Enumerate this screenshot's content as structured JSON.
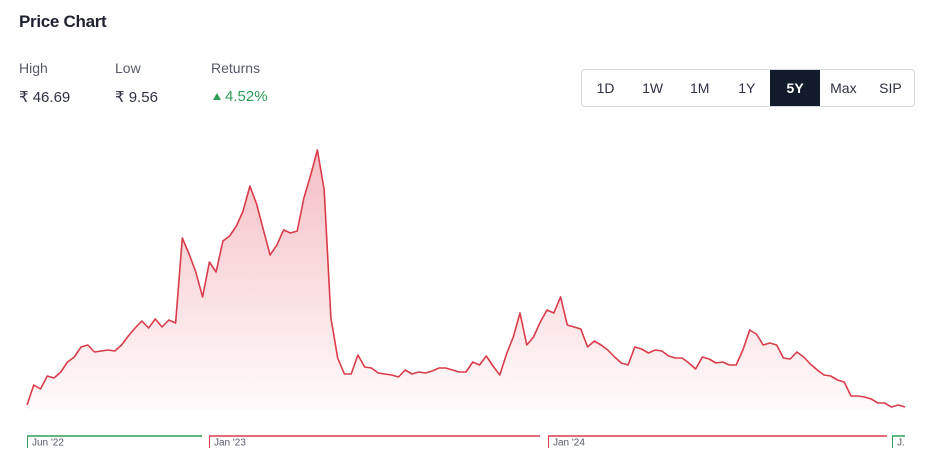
{
  "header": {
    "title": "Price Chart"
  },
  "stats": [
    {
      "label": "High",
      "value": "₹ 46.69"
    },
    {
      "label": "Low",
      "value": "₹ 9.56"
    },
    {
      "label": "Returns",
      "value": "4.52%"
    }
  ],
  "ranges": {
    "options": [
      "1D",
      "1W",
      "1M",
      "1Y",
      "5Y",
      "Max",
      "SIP"
    ],
    "active": "5Y"
  },
  "chart_data": {
    "type": "area",
    "ylim": [
      9.56,
      46.69
    ],
    "series": [
      {
        "color": "#d93c4a",
        "values": [
          9.85,
          12.74,
          12.16,
          14.04,
          13.75,
          14.62,
          16.06,
          16.79,
          18.23,
          18.52,
          17.51,
          17.65,
          17.8,
          17.65,
          18.52,
          19.82,
          20.98,
          21.99,
          20.98,
          22.28,
          21.12,
          22.13,
          21.7,
          33.98,
          31.67,
          29.07,
          25.46,
          30.51,
          29.07,
          33.55,
          34.27,
          35.71,
          37.88,
          41.49,
          38.89,
          35.14,
          31.52,
          32.97,
          35.14,
          34.7,
          34.99,
          39.76,
          43.08,
          46.69,
          40.92,
          22.42,
          16.64,
          14.33,
          14.33,
          17.07,
          15.34,
          15.2,
          14.47,
          14.33,
          14.18,
          13.9,
          14.91,
          14.33,
          14.62,
          14.47,
          14.76,
          15.2,
          15.2,
          14.91,
          14.62,
          14.62,
          16.06,
          15.63,
          16.93,
          15.48,
          14.18,
          17.22,
          19.68,
          23.14,
          18.52,
          19.68,
          21.84,
          23.58,
          23.14,
          25.46,
          21.41,
          21.12,
          20.83,
          18.23,
          19.1,
          18.52,
          17.8,
          16.79,
          15.92,
          15.63,
          18.23,
          17.94,
          17.36,
          17.8,
          17.65,
          16.93,
          16.64,
          16.64,
          15.92,
          15.05,
          16.79,
          16.5,
          15.92,
          16.06,
          15.63,
          15.63,
          17.8,
          20.69,
          20.11,
          18.52,
          18.81,
          18.52,
          16.64,
          16.5,
          17.51,
          16.79,
          15.77,
          14.91,
          14.18,
          14.04,
          13.46,
          13.17,
          11.15,
          11.15,
          11.01,
          10.72,
          10.14,
          10.14,
          9.56,
          9.85,
          9.56
        ]
      }
    ],
    "periods": [
      {
        "label": "Jun '22",
        "color": "#2e9e57"
      },
      {
        "label": "Jan '23",
        "color": "#d93c4a"
      },
      {
        "label": "Jan '24",
        "color": "#d93c4a"
      },
      {
        "label": "J.",
        "color": "#2e9e57"
      }
    ]
  }
}
